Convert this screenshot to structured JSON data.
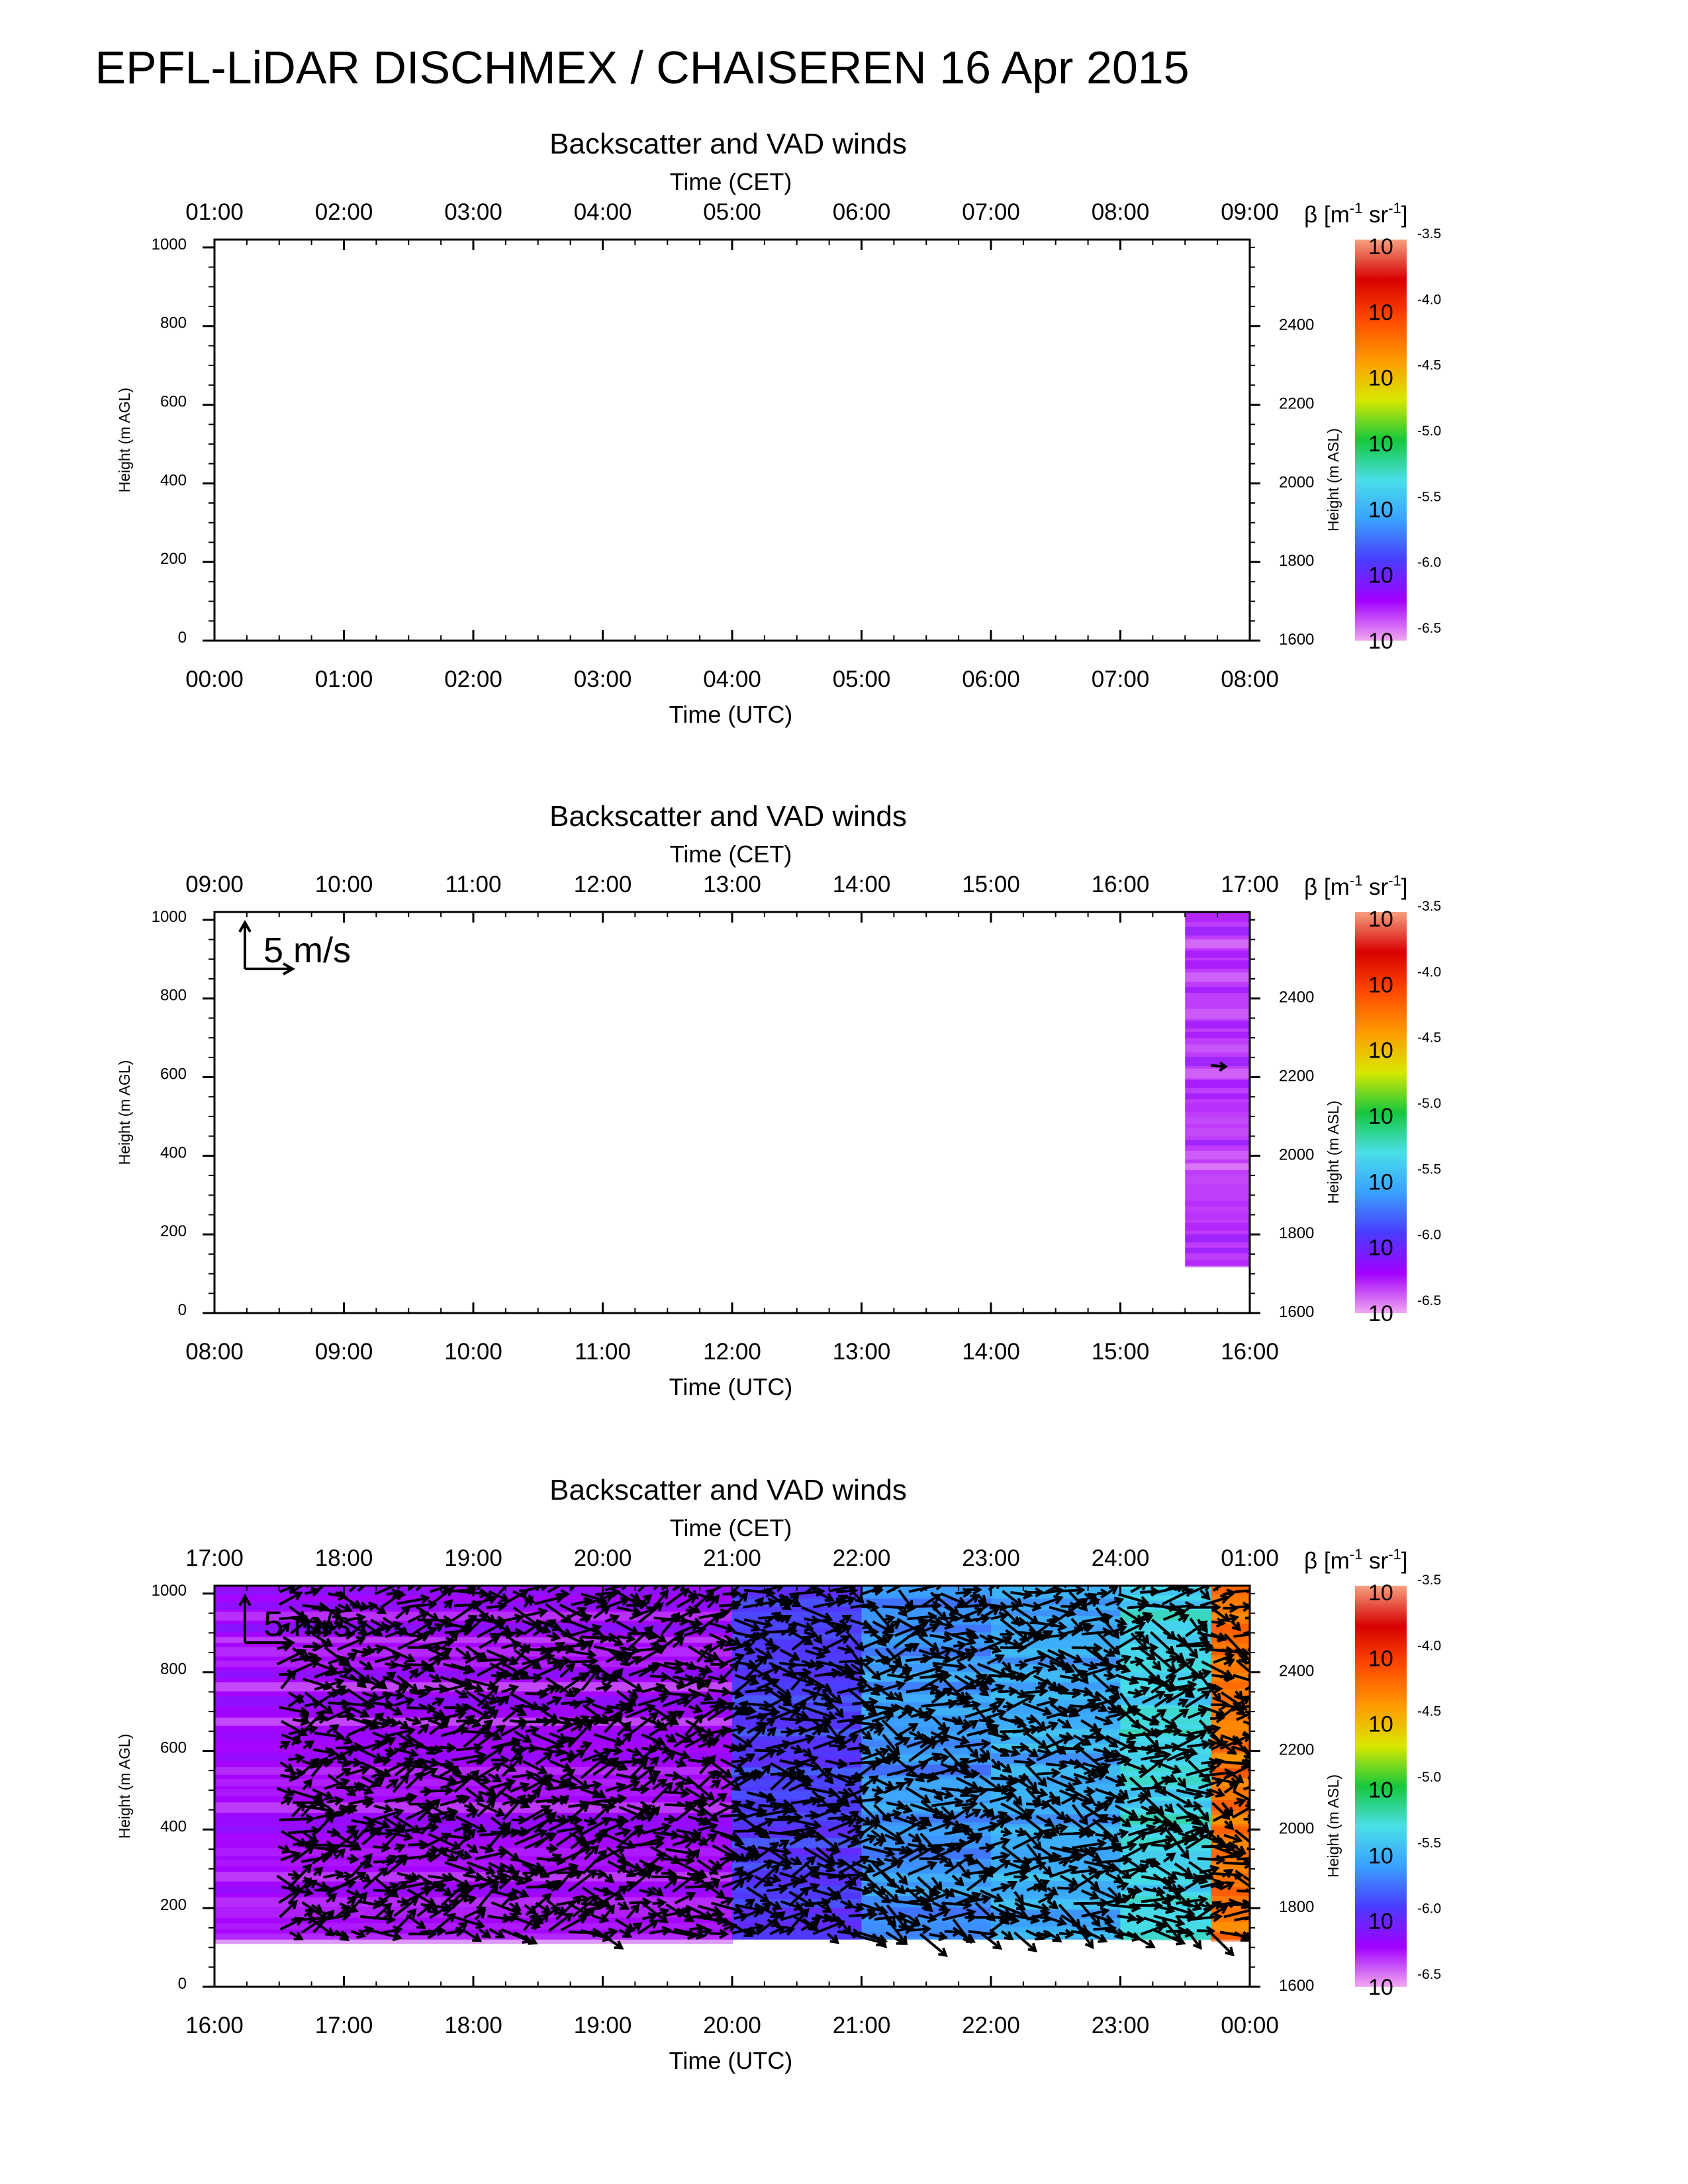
{
  "title": "EPFL-LiDAR DISCHMEX / CHAISEREN 16 Apr 2015",
  "colors": {
    "background": "#ffffff",
    "axis": "#000000",
    "wind_arrow": "#000000",
    "colormap": [
      "#f0a8f0",
      "#a200ff",
      "#4a3cff",
      "#3aa0ff",
      "#48e0e8",
      "#14c83c",
      "#d8e800",
      "#ff9a00",
      "#ff4a00",
      "#d80000",
      "#f6a080"
    ]
  },
  "colorbar": {
    "label_symbol": "β",
    "label_units": "[m",
    "label_exp1": "-1",
    "label_units2": " sr",
    "label_exp2": "-1",
    "label_close": "]",
    "base": "10",
    "exponents": [
      "-3.5",
      "-4.0",
      "-4.5",
      "-5.0",
      "-5.5",
      "-6.0",
      "-6.5"
    ],
    "range_log10": [
      -6.6,
      -3.5
    ]
  },
  "chart_data": [
    {
      "type": "heatmap",
      "title": "Backscatter and VAD winds",
      "xlabel": "Time (UTC)",
      "xlabel_top": "Time (CET)",
      "ylabel": "Height (m AGL)",
      "ylabel_right": "Height (m ASL)",
      "x_ticks": [
        "00:00",
        "01:00",
        "02:00",
        "03:00",
        "04:00",
        "05:00",
        "06:00",
        "07:00",
        "08:00"
      ],
      "x_ticks_top": [
        "01:00",
        "02:00",
        "03:00",
        "04:00",
        "05:00",
        "06:00",
        "07:00",
        "08:00",
        "09:00"
      ],
      "y_ticks": [
        "0",
        "200",
        "400",
        "600",
        "800",
        "1000"
      ],
      "y_ticks_right": [
        "1600",
        "1800",
        "2000",
        "2200",
        "2400"
      ],
      "ylim": [
        0,
        1020
      ],
      "ylim_right": [
        1600,
        2620
      ],
      "xlim_utc_hours": [
        0,
        8
      ],
      "backscatter_coverage": [],
      "wind_reference": null
    },
    {
      "type": "heatmap",
      "title": "Backscatter and VAD winds",
      "xlabel": "Time (UTC)",
      "xlabel_top": "Time (CET)",
      "ylabel": "Height (m AGL)",
      "ylabel_right": "Height (m ASL)",
      "x_ticks": [
        "08:00",
        "09:00",
        "10:00",
        "11:00",
        "12:00",
        "13:00",
        "14:00",
        "15:00",
        "16:00"
      ],
      "x_ticks_top": [
        "09:00",
        "10:00",
        "11:00",
        "12:00",
        "13:00",
        "14:00",
        "15:00",
        "16:00",
        "17:00"
      ],
      "y_ticks": [
        "0",
        "200",
        "400",
        "600",
        "800",
        "1000"
      ],
      "y_ticks_right": [
        "1600",
        "1800",
        "2000",
        "2200",
        "2400"
      ],
      "ylim": [
        0,
        1020
      ],
      "ylim_right": [
        1600,
        2620
      ],
      "xlim_utc_hours": [
        8,
        16
      ],
      "backscatter_coverage": [
        {
          "start_utc_hours": 15.5,
          "end_utc_hours": 16.0,
          "height_min": 120,
          "height_max": 1020,
          "log10_beta": -6.4
        }
      ],
      "wind_reference": "5 m/s"
    },
    {
      "type": "heatmap",
      "title": "Backscatter and VAD winds",
      "xlabel": "Time (UTC)",
      "xlabel_top": "Time (CET)",
      "ylabel": "Height (m AGL)",
      "ylabel_right": "Height (m ASL)",
      "x_ticks": [
        "16:00",
        "17:00",
        "18:00",
        "19:00",
        "20:00",
        "21:00",
        "22:00",
        "23:00",
        "00:00"
      ],
      "x_ticks_top": [
        "17:00",
        "18:00",
        "19:00",
        "20:00",
        "21:00",
        "22:00",
        "23:00",
        "24:00",
        "01:00"
      ],
      "y_ticks": [
        "0",
        "200",
        "400",
        "600",
        "800",
        "1000"
      ],
      "y_ticks_right": [
        "1600",
        "1800",
        "2000",
        "2200",
        "2400"
      ],
      "ylim": [
        0,
        1020
      ],
      "ylim_right": [
        1600,
        2620
      ],
      "xlim_utc_hours": [
        16,
        24
      ],
      "backscatter_coverage": [
        {
          "start_utc_hours": 16.0,
          "end_utc_hours": 20.0,
          "height_min": 120,
          "height_max": 1020,
          "log10_beta": -6.3
        },
        {
          "start_utc_hours": 20.0,
          "end_utc_hours": 21.0,
          "height_min": 120,
          "height_max": 1020,
          "log10_beta": -6.0
        },
        {
          "start_utc_hours": 21.0,
          "end_utc_hours": 22.0,
          "height_min": 120,
          "height_max": 1020,
          "log10_beta": -5.7
        },
        {
          "start_utc_hours": 22.0,
          "end_utc_hours": 23.0,
          "height_min": 120,
          "height_max": 1020,
          "log10_beta": -5.6
        },
        {
          "start_utc_hours": 23.0,
          "end_utc_hours": 23.7,
          "height_min": 120,
          "height_max": 1020,
          "log10_beta": -5.4
        },
        {
          "start_utc_hours": 23.7,
          "end_utc_hours": 24.0,
          "height_min": 120,
          "height_max": 1020,
          "log10_beta": -4.3
        }
      ],
      "wind_reference": "5 m/s",
      "wind_vectors_utc_hours": [
        16.5,
        24.0
      ]
    }
  ]
}
